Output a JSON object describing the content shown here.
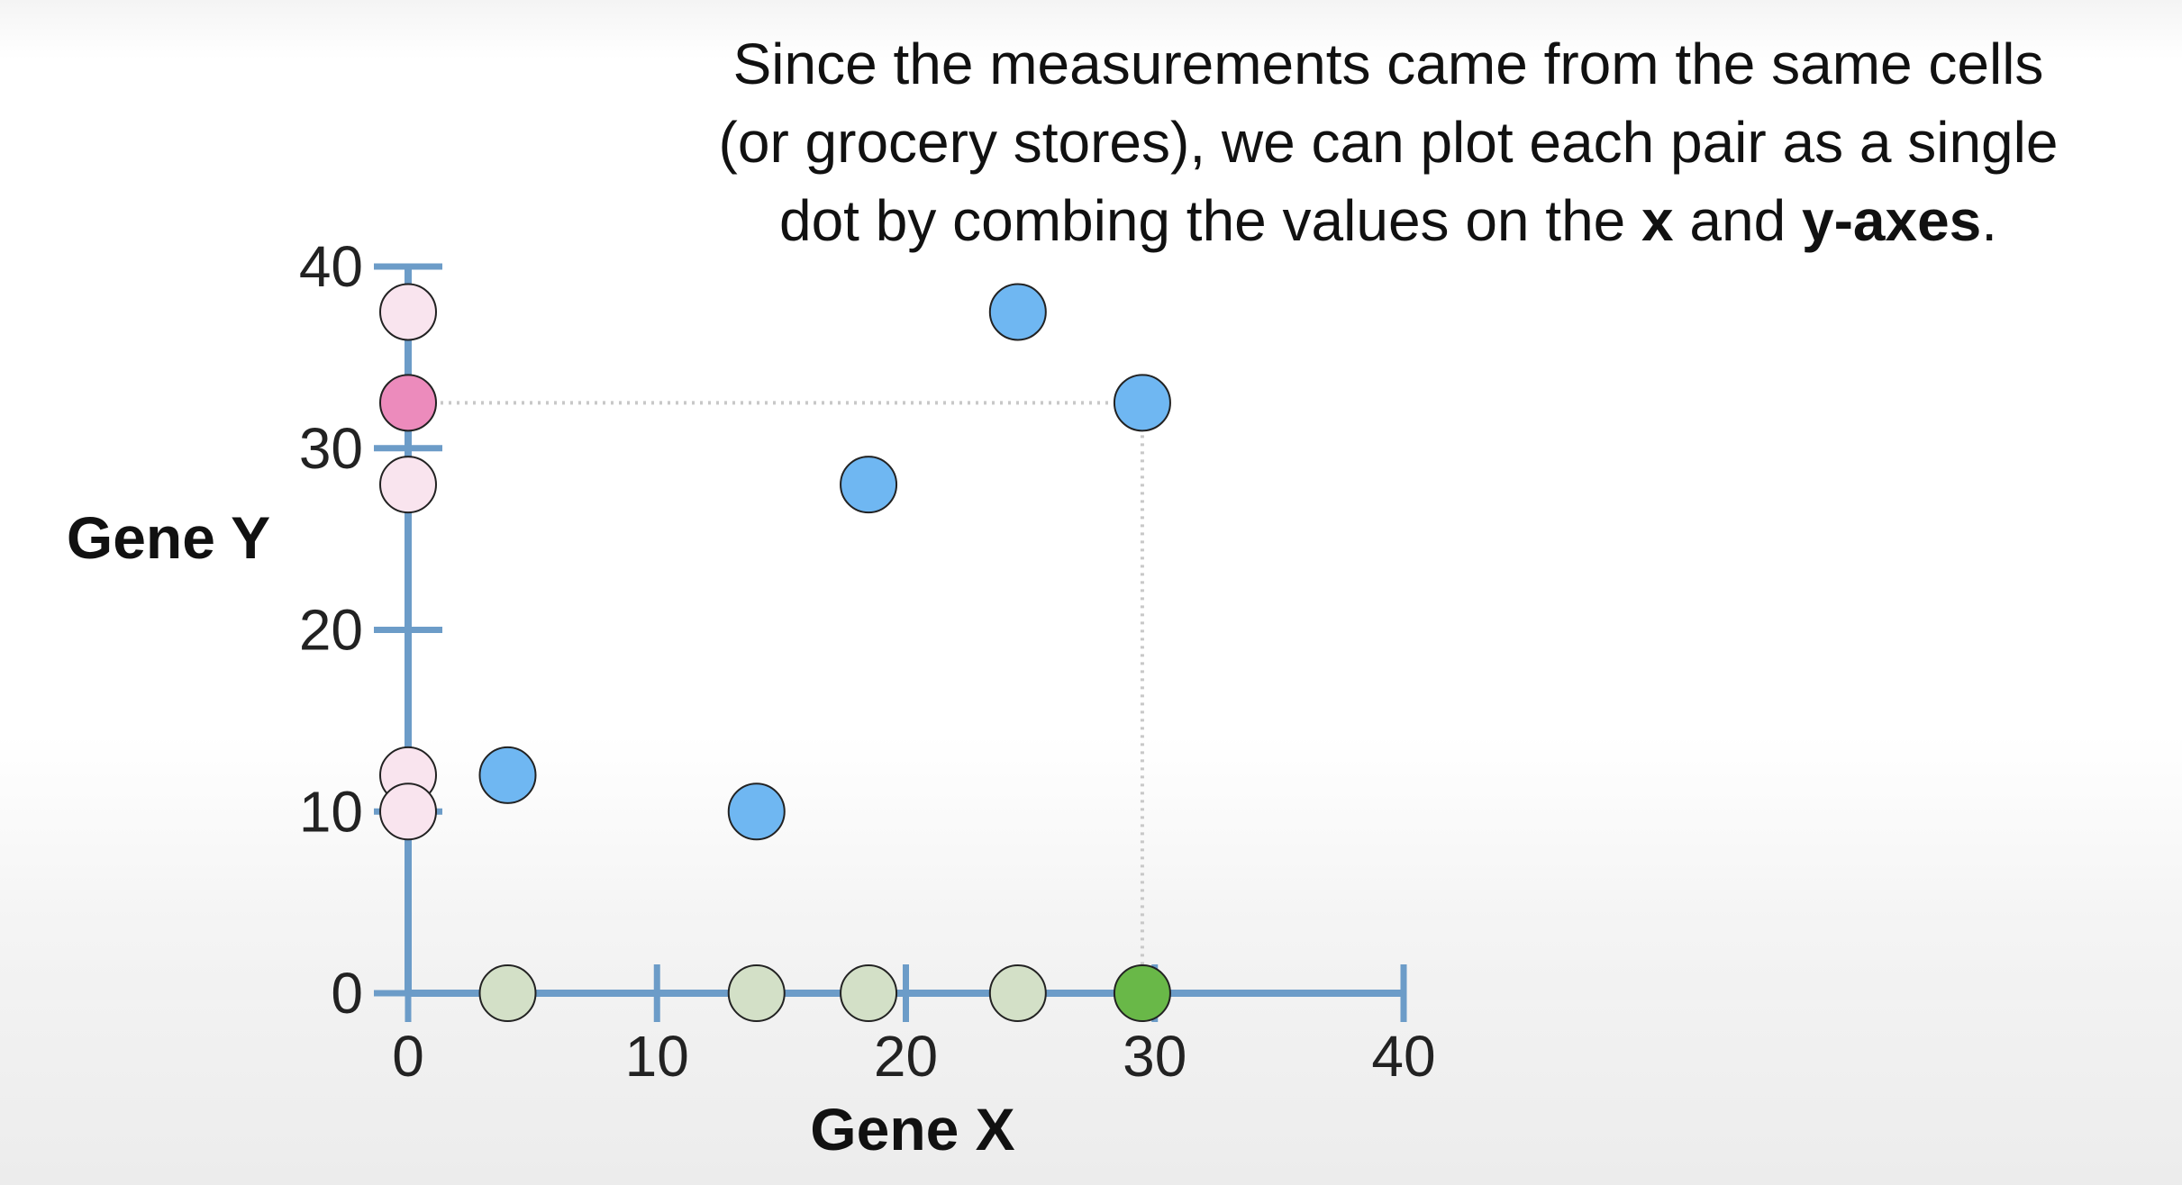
{
  "caption": {
    "line1": "Since the measurements came from the same cells",
    "line2": "(or grocery stores), we can plot each pair as a single",
    "line3_pre": "dot by combing the values on the ",
    "line3_x": "x",
    "line3_and": " and ",
    "line3_y": "y-axes",
    "line3_post": "."
  },
  "chart_data": {
    "type": "scatter",
    "xlabel": "Gene X",
    "ylabel": "Gene Y",
    "xlim": [
      0,
      40
    ],
    "ylim": [
      0,
      40
    ],
    "xticks": [
      "0",
      "10",
      "20",
      "30",
      "40"
    ],
    "yticks": [
      "0",
      "10",
      "20",
      "30",
      "40"
    ],
    "grid": false,
    "points": [
      {
        "x": 4,
        "y": 12
      },
      {
        "x": 14,
        "y": 10
      },
      {
        "x": 18.5,
        "y": 28
      },
      {
        "x": 24.5,
        "y": 37.5
      },
      {
        "x": 29.5,
        "y": 32.5
      }
    ],
    "highlight_index": 4,
    "colors": {
      "axis": "#6c9cc8",
      "point": "#6fb7f2",
      "x_projection": "#d3e0c7",
      "x_projection_highlight": "#69b848",
      "y_projection": "#f9e4ee",
      "y_projection_highlight": "#ec8bbc",
      "guide": "#c8c8c8"
    }
  }
}
